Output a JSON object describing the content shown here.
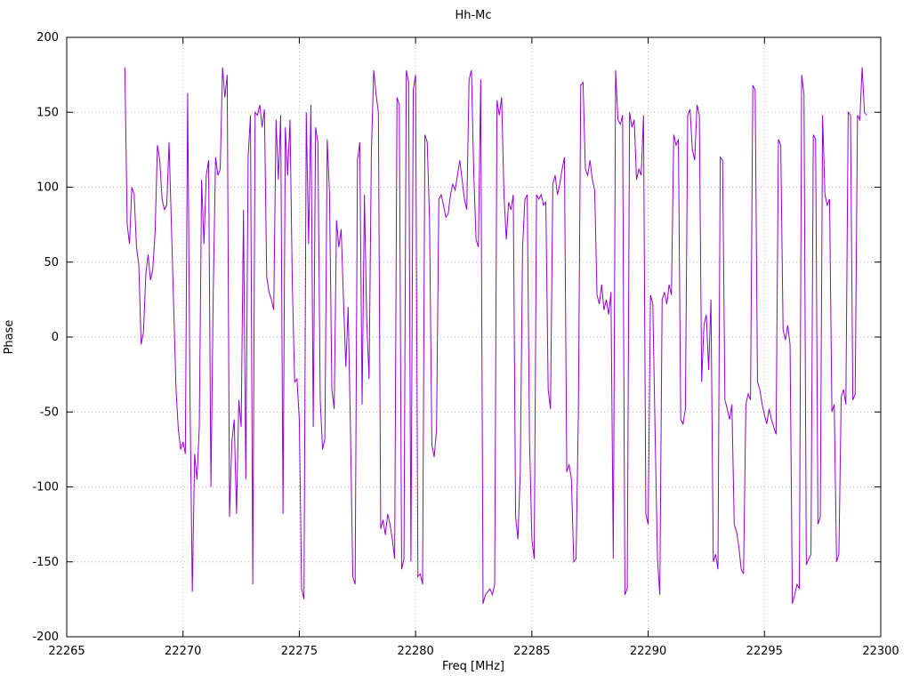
{
  "chart_data": {
    "type": "line",
    "title": "Hh-Mc",
    "xlabel": "Freq [MHz]",
    "ylabel": "Phase",
    "xlim": [
      22265,
      22300
    ],
    "ylim": [
      -200,
      200
    ],
    "x_ticks": [
      22265,
      22270,
      22275,
      22280,
      22285,
      22290,
      22295,
      22300
    ],
    "y_ticks": [
      -200,
      -150,
      -100,
      -50,
      0,
      50,
      100,
      150,
      200
    ],
    "grid": true,
    "legend": "none",
    "line_color": "#9400d3",
    "grid_color": "#b8b8b8",
    "border_color": "#000000",
    "series": [
      {
        "name": "Hh-Mc",
        "x_start": 22267.5,
        "x_step": 0.1,
        "values": [
          180,
          75,
          62,
          100,
          95,
          60,
          48,
          -5,
          3,
          42,
          55,
          38,
          45,
          70,
          128,
          118,
          92,
          85,
          88,
          130,
          75,
          20,
          -35,
          -62,
          -75,
          -70,
          -78,
          163,
          -40,
          -170,
          -78,
          -95,
          -60,
          105,
          62,
          108,
          118,
          -100,
          30,
          120,
          108,
          112,
          180,
          160,
          175,
          -120,
          -70,
          -55,
          -118,
          -42,
          -60,
          85,
          -95,
          120,
          148,
          -165,
          150,
          148,
          155,
          140,
          152,
          40,
          30,
          25,
          18,
          145,
          105,
          148,
          -118,
          140,
          108,
          145,
          35,
          -30,
          -28,
          -55,
          -168,
          -175,
          150,
          62,
          155,
          -60,
          140,
          130,
          -42,
          -75,
          -68,
          132,
          95,
          -35,
          -48,
          78,
          60,
          72,
          25,
          -20,
          20,
          -62,
          -160,
          -165,
          118,
          130,
          -45,
          95,
          10,
          -28,
          125,
          178,
          162,
          150,
          -128,
          -122,
          -132,
          -118,
          -125,
          -135,
          -148,
          160,
          155,
          -155,
          -148,
          178,
          170,
          -150,
          165,
          175,
          -160,
          -158,
          -165,
          135,
          130,
          78,
          -72,
          -80,
          -62,
          92,
          95,
          88,
          80,
          82,
          95,
          102,
          98,
          108,
          118,
          105,
          92,
          85,
          172,
          178,
          110,
          65,
          60,
          172,
          -178,
          -172,
          -170,
          -168,
          -172,
          -165,
          158,
          148,
          160,
          95,
          65,
          90,
          85,
          95,
          -120,
          -135,
          -90,
          60,
          92,
          95,
          -70,
          -135,
          -148,
          95,
          92,
          95,
          88,
          90,
          -35,
          -48,
          102,
          108,
          95,
          102,
          112,
          120,
          -90,
          -85,
          -95,
          -150,
          -148,
          -50,
          168,
          170,
          112,
          108,
          118,
          105,
          98,
          28,
          22,
          35,
          18,
          25,
          15,
          30,
          -148,
          178,
          145,
          142,
          148,
          -172,
          -168,
          150,
          140,
          145,
          105,
          112,
          108,
          148,
          -118,
          -125,
          28,
          22,
          -65,
          -148,
          -172,
          25,
          30,
          22,
          35,
          28,
          135,
          128,
          132,
          -55,
          -58,
          -48,
          148,
          152,
          125,
          118,
          155,
          148,
          -30,
          8,
          15,
          -22,
          25,
          -150,
          -145,
          -155,
          120,
          118,
          -42,
          -48,
          -55,
          -45,
          -125,
          -130,
          -140,
          -155,
          -158,
          -45,
          -38,
          -42,
          168,
          165,
          -30,
          -35,
          -45,
          -52,
          -58,
          -48,
          -55,
          -60,
          -65,
          132,
          128,
          5,
          -2,
          8,
          -5,
          -178,
          -172,
          -165,
          -168,
          175,
          162,
          -152,
          -148,
          -145,
          135,
          132,
          -125,
          -120,
          148,
          95,
          88,
          92,
          -50,
          -45,
          -150,
          -145,
          -40,
          -35,
          -45,
          150,
          148,
          -42,
          -38,
          148,
          145,
          180,
          150,
          148
        ]
      }
    ]
  }
}
